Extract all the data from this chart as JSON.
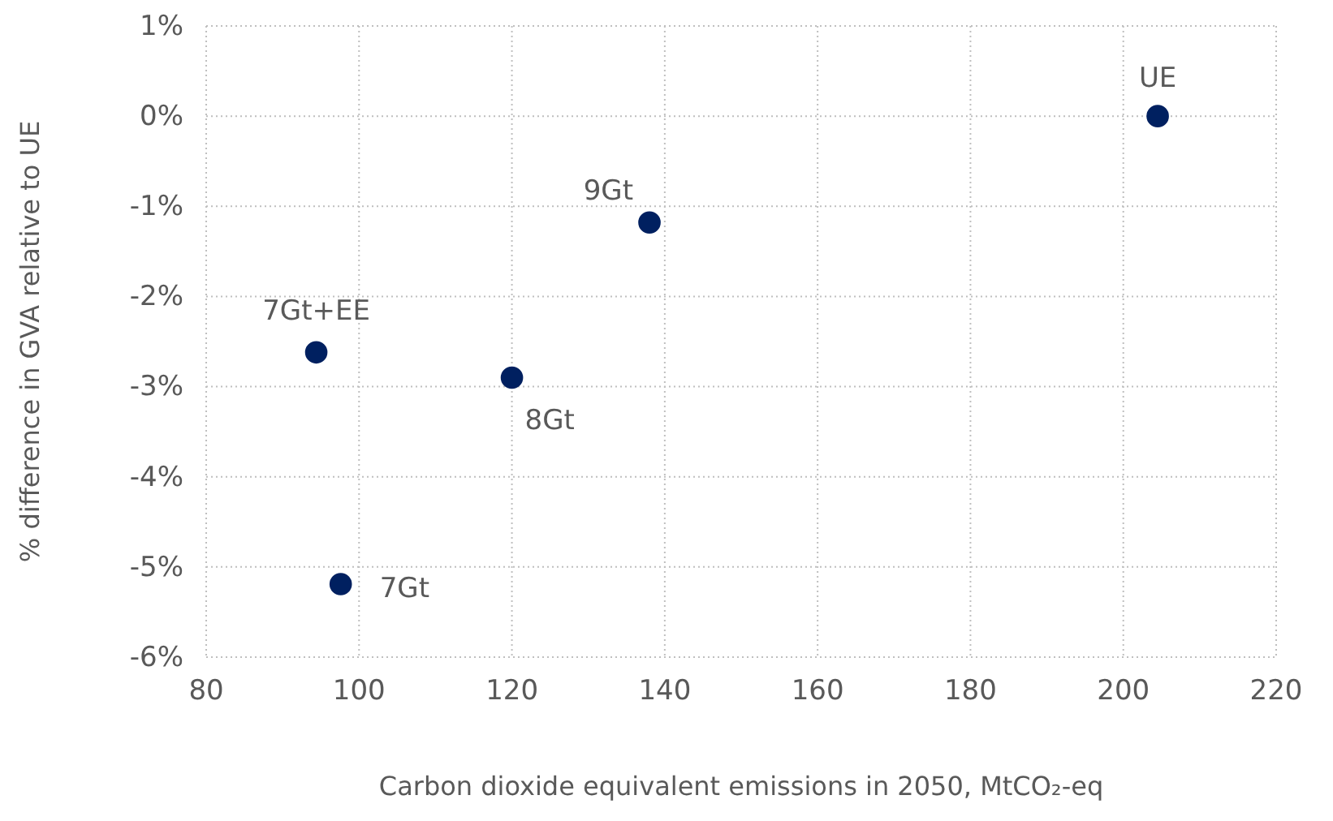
{
  "chart_data": {
    "type": "scatter",
    "xlabel": "Carbon dioxide equivalent emissions in 2050, MtCO₂-eq",
    "ylabel": "% difference in GVA relative to UE",
    "x": [
      204.5,
      138,
      94.4,
      120,
      97.6
    ],
    "series": [
      {
        "color": "#002060",
        "values": [
          0,
          -1.18,
          -2.62,
          -2.9,
          -5.19
        ]
      }
    ],
    "annotations": [
      {
        "text": "UE",
        "x": 204.5,
        "y": 0
      },
      {
        "text": "9Gt",
        "x": 138,
        "y": -1.18
      },
      {
        "text": "7Gt+EE",
        "x": 94.4,
        "y": -2.62
      },
      {
        "text": "8Gt",
        "x": 120,
        "y": -2.9
      },
      {
        "text": "7Gt",
        "x": 97.6,
        "y": -5.19
      }
    ],
    "xlim": [
      80,
      220
    ],
    "xticks": [
      80,
      100,
      120,
      140,
      160,
      180,
      200,
      220
    ],
    "ylim": [
      -6,
      1
    ],
    "yticks": [
      {
        "value": -6,
        "label": "-6%"
      },
      {
        "value": -5,
        "label": "-5%"
      },
      {
        "value": -4,
        "label": "-4%"
      },
      {
        "value": -3,
        "label": "-3%"
      },
      {
        "value": -2,
        "label": "-2%"
      },
      {
        "value": -1,
        "label": "-1%"
      },
      {
        "value": 0,
        "label": "0%"
      },
      {
        "value": 1,
        "label": "1%"
      }
    ],
    "grid": true,
    "marker": "circle"
  }
}
